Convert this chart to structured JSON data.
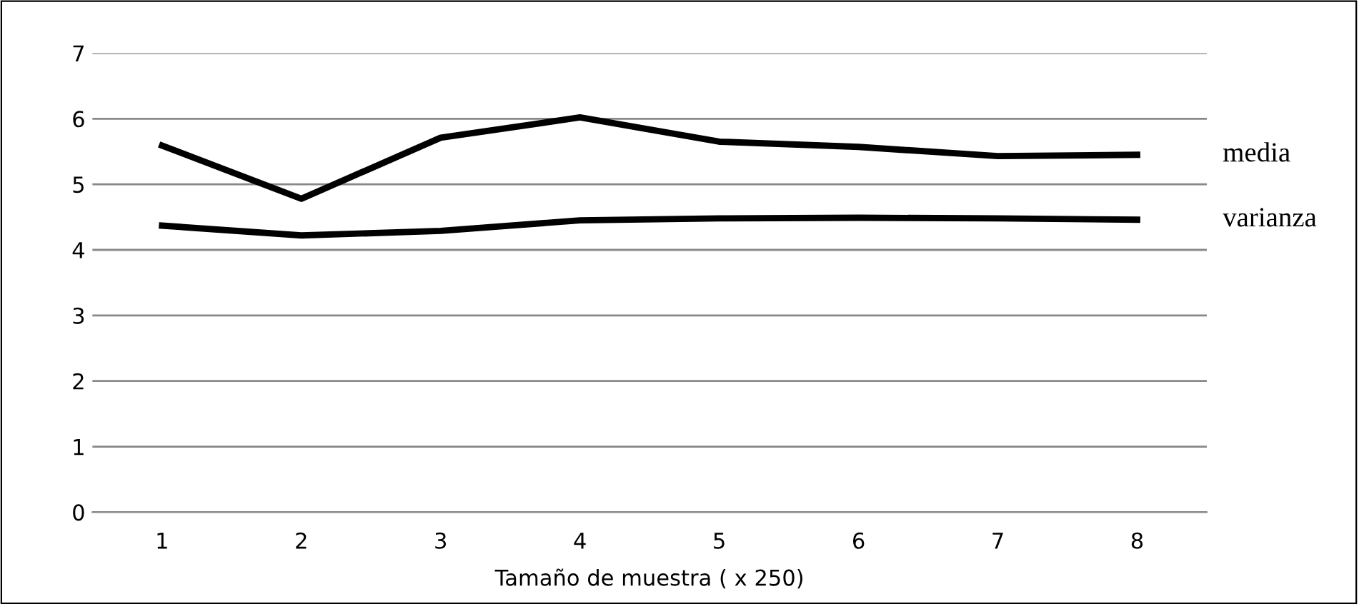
{
  "chart_data": {
    "type": "line",
    "xlabel": "Tamaño de muestra ( x 250)",
    "categories": [
      "1",
      "2",
      "3",
      "4",
      "5",
      "6",
      "7",
      "8"
    ],
    "series": [
      {
        "name": "media",
        "color": "#000000",
        "values": [
          5.59,
          4.78,
          5.71,
          6.02,
          5.65,
          5.57,
          5.43,
          5.45
        ]
      },
      {
        "name": "varianza",
        "color": "#000000",
        "values": [
          4.37,
          4.22,
          4.29,
          4.45,
          4.48,
          4.49,
          4.48,
          4.46
        ]
      }
    ],
    "ylim": [
      0,
      7
    ],
    "yticks": [
      0,
      1,
      2,
      3,
      4,
      5,
      6,
      7
    ],
    "grid": "y",
    "legend": false,
    "marker": "none",
    "line_style": "solid"
  }
}
